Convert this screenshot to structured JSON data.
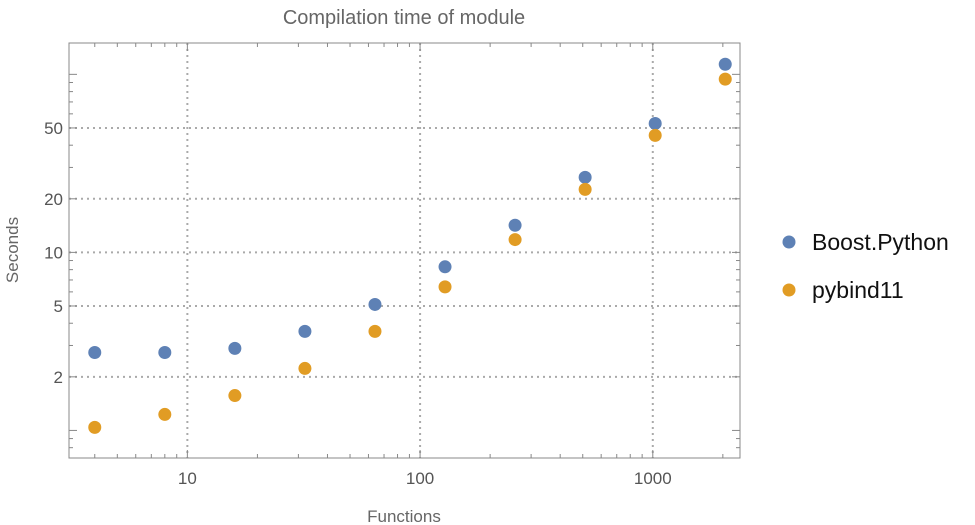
{
  "chart_data": {
    "type": "scatter",
    "title": "Compilation time of module",
    "xlabel": "Functions",
    "ylabel": "Seconds",
    "x_scale": "log",
    "y_scale": "log",
    "xlim": [
      3.1,
      2370
    ],
    "ylim": [
      0.7,
      150
    ],
    "grid": true,
    "x_gridlines": [
      10,
      100,
      1000
    ],
    "y_gridlines": [
      2,
      5,
      10,
      20,
      50
    ],
    "x_ticks": [
      {
        "value": 10,
        "label": "10"
      },
      {
        "value": 100,
        "label": "100"
      },
      {
        "value": 1000,
        "label": "1000"
      }
    ],
    "y_ticks": [
      {
        "value": 2,
        "label": "2"
      },
      {
        "value": 5,
        "label": "5"
      },
      {
        "value": 10,
        "label": "10"
      },
      {
        "value": 20,
        "label": "20"
      },
      {
        "value": 50,
        "label": "50"
      }
    ],
    "legend_position": "right",
    "x": [
      4,
      8,
      16,
      32,
      64,
      128,
      256,
      512,
      1024,
      2048
    ],
    "series": [
      {
        "name": "Boost.Python",
        "color": "#5E81B5",
        "values": [
          2.74,
          2.74,
          2.89,
          3.6,
          5.1,
          8.3,
          14.2,
          26.4,
          53,
          114
        ]
      },
      {
        "name": "pybind11",
        "color": "#E19C24",
        "values": [
          1.04,
          1.23,
          1.57,
          2.23,
          3.6,
          6.4,
          11.8,
          22.6,
          45.4,
          94
        ]
      }
    ]
  }
}
